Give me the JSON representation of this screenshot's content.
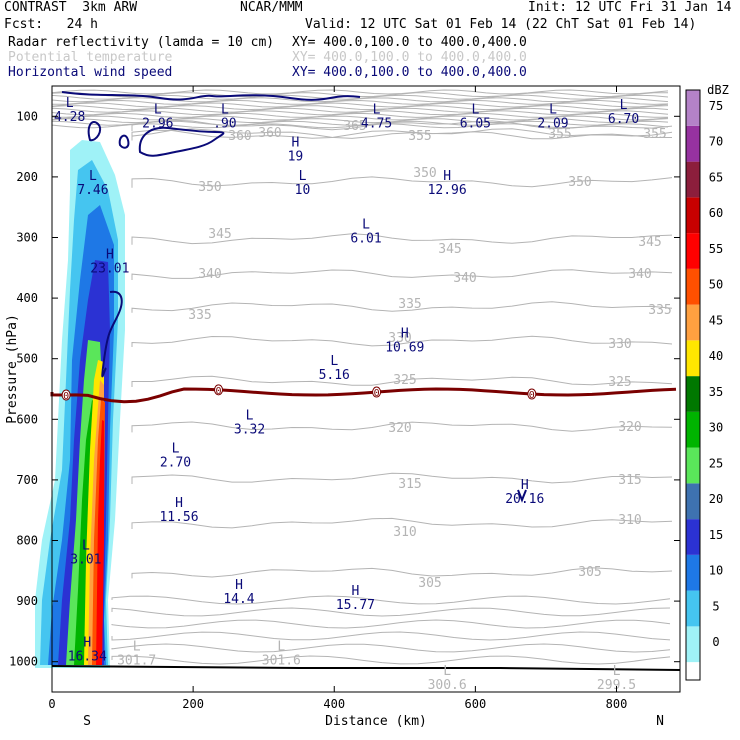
{
  "header": {
    "model": "CONTRAST  3km ARW",
    "org": "NCAR/MMM",
    "init": "Init: 12 UTC Fri 31 Jan 14",
    "fcst": "Fcst:   24 h",
    "valid": "Valid: 12 UTC Sat 01 Feb 14 (22 ChT Sat 01 Feb 14)",
    "fields": [
      {
        "name": "Radar reflectivity (lamda = 10 cm)",
        "xy": "XY= 400.0,100.0 to 400.0,400.0",
        "color": "#000000"
      },
      {
        "name": "Potential temperature",
        "xy": "XY= 400.0,100.0 to 400.0,400.0",
        "color": "#c8c8c8"
      },
      {
        "name": "Horizontal wind speed",
        "xy": "XY= 400.0,100.0 to 400.0,400.0",
        "color": "#0a0a78"
      }
    ]
  },
  "chart_data": {
    "type": "heatmap",
    "xlabel": "Distance (km)",
    "ylabel": "Pressure (hPa)",
    "xlim": [
      0,
      890
    ],
    "ylim": [
      1050,
      50
    ],
    "x_ticks": [
      0,
      200,
      400,
      600,
      800
    ],
    "y_ticks": [
      100,
      200,
      300,
      400,
      500,
      600,
      700,
      800,
      900,
      1000
    ],
    "x_end_labels": {
      "left": "S",
      "right": "N"
    },
    "colorbar": {
      "unit": "dBZ",
      "levels": [
        0,
        5,
        10,
        15,
        20,
        25,
        30,
        35,
        40,
        45,
        50,
        55,
        60,
        65,
        70,
        75
      ],
      "colors": [
        "#9ff2f7",
        "#45c5f0",
        "#1e78e6",
        "#2b32d3",
        "#3e72b0",
        "#5ae65a",
        "#00b400",
        "#007800",
        "#ffe600",
        "#ffa040",
        "#ff5000",
        "#ff0000",
        "#c80000",
        "#8c1e3c",
        "#9632a0",
        "#b482c8"
      ]
    },
    "theta_contours": [
      {
        "value": 360,
        "labels": [
          [
            240,
            135
          ],
          [
            270,
            132
          ]
        ]
      },
      {
        "value": 365,
        "labels": [
          [
            355,
            125
          ]
        ]
      },
      {
        "value": 355,
        "labels": [
          [
            420,
            135
          ],
          [
            560,
            133
          ],
          [
            655,
            133
          ],
          [
            855,
            137
          ]
        ]
      },
      {
        "value": 350,
        "labels": [
          [
            210,
            186
          ],
          [
            425,
            172
          ],
          [
            580,
            181
          ],
          [
            850,
            188
          ]
        ]
      },
      {
        "value": 345,
        "labels": [
          [
            220,
            233
          ],
          [
            450,
            248
          ],
          [
            650,
            241
          ],
          [
            845,
            233
          ]
        ]
      },
      {
        "value": 340,
        "labels": [
          [
            210,
            273
          ],
          [
            465,
            277
          ],
          [
            640,
            273
          ],
          [
            850,
            273
          ]
        ]
      },
      {
        "value": 335,
        "labels": [
          [
            200,
            314
          ],
          [
            410,
            303
          ],
          [
            660,
            309
          ],
          [
            850,
            301
          ]
        ]
      },
      {
        "value": 330,
        "labels": [
          [
            400,
            337
          ],
          [
            620,
            343
          ],
          [
            840,
            343
          ]
        ]
      },
      {
        "value": 325,
        "labels": [
          [
            405,
            379
          ],
          [
            620,
            381
          ],
          [
            845,
            383
          ]
        ]
      },
      {
        "value": 320,
        "labels": [
          [
            400,
            427
          ],
          [
            630,
            426
          ],
          [
            840,
            426
          ]
        ]
      },
      {
        "value": 315,
        "labels": [
          [
            410,
            483
          ],
          [
            630,
            479
          ],
          [
            840,
            472
          ]
        ]
      },
      {
        "value": 310,
        "labels": [
          [
            405,
            531
          ],
          [
            630,
            519
          ],
          [
            825,
            519
          ]
        ]
      },
      {
        "value": 305,
        "labels": [
          [
            430,
            582
          ],
          [
            590,
            571
          ],
          [
            805,
            564
          ]
        ]
      }
    ],
    "theta_zero_marker": {
      "value": 0,
      "pressure_hPa": 555,
      "labels_x_km": [
        20,
        236,
        460,
        680
      ]
    },
    "wind_extrema": [
      {
        "type": "L",
        "value": "4.28",
        "x_km": 25,
        "p_hPa": 85
      },
      {
        "type": "L",
        "value": "2.96",
        "x_km": 150,
        "p_hPa": 95
      },
      {
        "type": "L",
        "value": ".90",
        "x_km": 245,
        "p_hPa": 95
      },
      {
        "type": "L",
        "value": "4.75",
        "x_km": 460,
        "p_hPa": 95
      },
      {
        "type": "L",
        "value": "6.05",
        "x_km": 600,
        "p_hPa": 95
      },
      {
        "type": "L",
        "value": "2.09",
        "x_km": 710,
        "p_hPa": 95
      },
      {
        "type": "L",
        "value": "6.70",
        "x_km": 810,
        "p_hPa": 88
      },
      {
        "type": "H",
        "value": "19",
        "x_km": 345,
        "p_hPa": 150
      },
      {
        "type": "L",
        "value": "7.46",
        "x_km": 58,
        "p_hPa": 205
      },
      {
        "type": "L",
        "value": "10",
        "x_km": 355,
        "p_hPa": 205
      },
      {
        "type": "H",
        "value": "12.96",
        "x_km": 560,
        "p_hPa": 205
      },
      {
        "type": "L",
        "value": "6.01",
        "x_km": 445,
        "p_hPa": 285
      },
      {
        "type": "H",
        "value": "23.01",
        "x_km": 82,
        "p_hPa": 335
      },
      {
        "type": "H",
        "value": "10.69",
        "x_km": 500,
        "p_hPa": 465
      },
      {
        "type": "L",
        "value": "5.16",
        "x_km": 400,
        "p_hPa": 510
      },
      {
        "type": "L",
        "value": "3.32",
        "x_km": 280,
        "p_hPa": 600
      },
      {
        "type": "L",
        "value": "2.70",
        "x_km": 175,
        "p_hPa": 655
      },
      {
        "type": "H",
        "value": "20.16",
        "x_km": 670,
        "p_hPa": 715
      },
      {
        "type": "H",
        "value": "11.56",
        "x_km": 180,
        "p_hPa": 745
      },
      {
        "type": "L",
        "value": "3.01",
        "x_km": 48,
        "p_hPa": 815
      },
      {
        "type": "H",
        "value": "14.4",
        "x_km": 265,
        "p_hPa": 880
      },
      {
        "type": "H",
        "value": "15.77",
        "x_km": 430,
        "p_hPa": 890
      },
      {
        "type": "H",
        "value": "16.34",
        "x_km": 50,
        "p_hPa": 975
      }
    ],
    "theta_extrema": [
      {
        "type": "L",
        "value": "301.7",
        "x_km": 120,
        "p_hPa": 995
      },
      {
        "type": "L",
        "value": "301.6",
        "x_km": 325,
        "p_hPa": 995
      },
      {
        "type": "L",
        "value": "300.6",
        "x_km": 560,
        "p_hPa": 1035
      },
      {
        "type": "L",
        "value": "299.5",
        "x_km": 800,
        "p_hPa": 1035
      }
    ]
  }
}
